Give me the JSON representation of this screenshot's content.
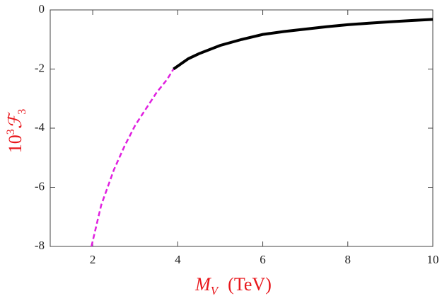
{
  "chart_data": {
    "type": "line",
    "x_label": {
      "symbol": "M",
      "subscript": "V",
      "unit": "(TeV)"
    },
    "y_label": {
      "base": "10",
      "exponent": "3",
      "symbol": "ℱ",
      "subscript": "3"
    },
    "series": [
      {
        "color": "#e020e0",
        "dashed": true,
        "x": [
          1.97,
          2.2,
          2.5,
          2.75,
          3,
          3.25,
          3.5,
          3.75,
          3.9
        ],
        "values": [
          -8,
          -6.6,
          -5.4,
          -4.6,
          -3.9,
          -3.35,
          -2.8,
          -2.35,
          -2.0
        ]
      },
      {
        "color": "#000000",
        "dashed": false,
        "x": [
          3.9,
          4.25,
          4.5,
          5,
          5.5,
          6,
          6.5,
          7,
          7.5,
          8,
          8.5,
          9,
          9.5,
          10
        ],
        "values": [
          -2.0,
          -1.65,
          -1.48,
          -1.2,
          -1.0,
          -0.83,
          -0.73,
          -0.65,
          -0.57,
          -0.5,
          -0.45,
          -0.4,
          -0.36,
          -0.32
        ]
      }
    ],
    "xlim": [
      1,
      10
    ],
    "ylim": [
      -8,
      0
    ],
    "xticks": [
      2,
      4,
      6,
      8,
      10
    ],
    "yticks": [
      0,
      -2,
      -4,
      -6,
      -8
    ]
  }
}
